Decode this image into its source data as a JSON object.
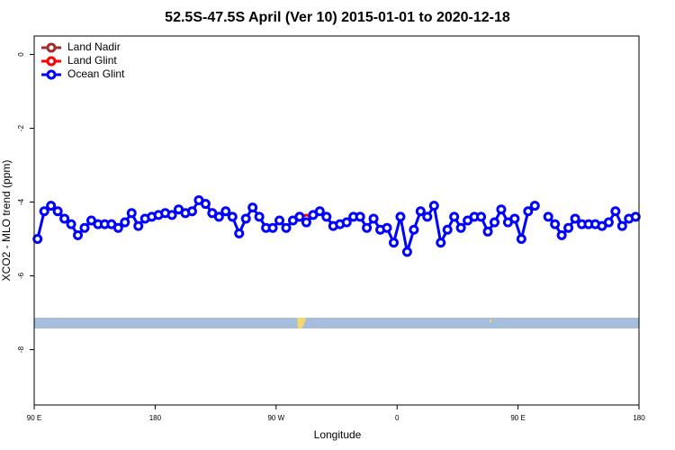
{
  "chart_data": {
    "type": "line",
    "title": "52.5S-47.5S April (Ver 10)   2015-01-01 to 2020-12-18",
    "x_label": "Longitude",
    "y_label": "XCO2 - MLO trend (ppm)",
    "xlim": [
      90,
      540
    ],
    "xticks": [
      {
        "value": 90,
        "label": "90 E"
      },
      {
        "value": 180,
        "label": "180"
      },
      {
        "value": 270,
        "label": "90 W"
      },
      {
        "value": 360,
        "label": "0"
      },
      {
        "value": 450,
        "label": "90 E"
      },
      {
        "value": 540,
        "label": "180"
      }
    ],
    "ylim": [
      -9.5,
      0.5
    ],
    "yticks": [
      0,
      -2,
      -4,
      -6,
      -8
    ],
    "legend": "top-left",
    "series": [
      {
        "name": "Land Nadir",
        "color": "#a52a2a",
        "x": [],
        "values": []
      },
      {
        "name": "Land Glint",
        "color": "#ff0000",
        "x": [
          287.5,
          292.5
        ],
        "values": [
          -4.4,
          -4.45
        ]
      },
      {
        "name": "Ocean Glint",
        "color": "#0000ff",
        "x": [
          92.5,
          97.5,
          102.5,
          107.5,
          112.5,
          117.5,
          122.5,
          127.5,
          132.5,
          137.5,
          142.5,
          147.5,
          152.5,
          157.5,
          162.5,
          167.5,
          172.5,
          177.5,
          182.5,
          187.5,
          192.5,
          197.5,
          202.5,
          207.5,
          212.5,
          217.5,
          222.5,
          227.5,
          232.5,
          237.5,
          242.5,
          247.5,
          252.5,
          257.5,
          262.5,
          267.5,
          272.5,
          277.5,
          282.5,
          287.5,
          292.5,
          297.5,
          302.5,
          307.5,
          312.5,
          317.5,
          322.5,
          327.5,
          332.5,
          337.5,
          342.5,
          347.5,
          352.5,
          357.5,
          362.5,
          367.5,
          372.5,
          377.5,
          382.5,
          387.5,
          392.5,
          397.5,
          402.5,
          407.5,
          412.5,
          417.5,
          422.5,
          427.5,
          432.5,
          437.5,
          442.5,
          447.5,
          452.5,
          457.5,
          462.5,
          467.5,
          472.5,
          477.5,
          482.5,
          487.5,
          492.5,
          497.5,
          502.5,
          507.5,
          512.5,
          517.5,
          522.5,
          527.5,
          532.5,
          537.5
        ],
        "values": [
          -5.0,
          -4.25,
          -4.1,
          -4.25,
          -4.45,
          -4.6,
          -4.9,
          -4.7,
          -4.5,
          -4.6,
          -4.6,
          -4.6,
          -4.7,
          -4.55,
          -4.3,
          -4.65,
          -4.45,
          -4.4,
          -4.35,
          -4.3,
          -4.35,
          -4.2,
          -4.3,
          -4.25,
          -3.95,
          -4.05,
          -4.3,
          -4.4,
          -4.25,
          -4.4,
          -4.85,
          -4.45,
          -4.15,
          -4.4,
          -4.7,
          -4.7,
          -4.5,
          -4.7,
          -4.5,
          -4.4,
          -4.55,
          -4.35,
          -4.25,
          -4.4,
          -4.65,
          -4.6,
          -4.55,
          -4.4,
          -4.4,
          -4.7,
          -4.45,
          -4.75,
          -4.7,
          -5.1,
          -4.4,
          -5.35,
          -4.75,
          -4.25,
          -4.4,
          -4.1,
          -5.1,
          -4.75,
          -4.4,
          -4.7,
          -4.5,
          -4.4,
          -4.4,
          -4.8,
          -4.55,
          -4.2,
          -4.55,
          -4.45,
          -5.0,
          -4.25,
          -4.1,
          null,
          -4.4,
          -4.6,
          -4.9,
          -4.7,
          -4.45,
          -4.6,
          -4.6,
          -4.6,
          -4.65,
          -4.55,
          -4.25,
          -4.65,
          -4.45,
          -4.4
        ]
      }
    ]
  }
}
